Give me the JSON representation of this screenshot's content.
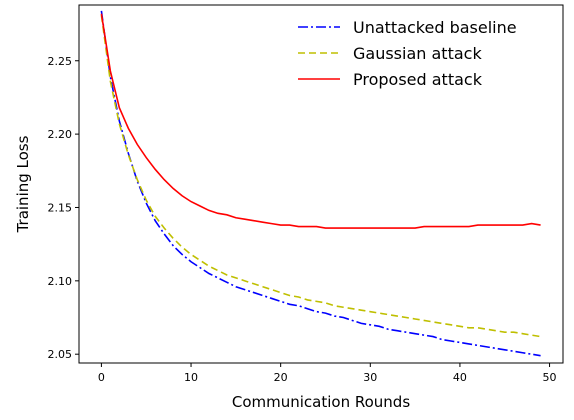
{
  "chart_data": {
    "type": "line",
    "xlabel": "Communication Rounds",
    "ylabel": "Training Loss",
    "xlim": [
      -2.5,
      51.5
    ],
    "ylim": [
      2.044,
      2.288
    ],
    "xticks": [
      0,
      10,
      20,
      30,
      40,
      50
    ],
    "yticks": [
      2.05,
      2.1,
      2.15,
      2.2,
      2.25
    ],
    "xtick_labels": [
      "0",
      "10",
      "20",
      "30",
      "40",
      "50"
    ],
    "ytick_labels": [
      "2.05",
      "2.10",
      "2.15",
      "2.20",
      "2.25"
    ],
    "grid": false,
    "legend_position": "top-right",
    "x": [
      0,
      1,
      2,
      3,
      4,
      5,
      6,
      7,
      8,
      9,
      10,
      11,
      12,
      13,
      14,
      15,
      16,
      17,
      18,
      19,
      20,
      21,
      22,
      23,
      24,
      25,
      26,
      27,
      28,
      29,
      30,
      31,
      32,
      33,
      34,
      35,
      36,
      37,
      38,
      39,
      40,
      41,
      42,
      43,
      44,
      45,
      46,
      47,
      48,
      49
    ],
    "series": [
      {
        "name": "Unattacked baseline",
        "color": "#0000ff",
        "dash": "dashdot",
        "values": [
          2.284,
          2.239,
          2.209,
          2.187,
          2.168,
          2.153,
          2.141,
          2.132,
          2.124,
          2.118,
          2.113,
          2.109,
          2.105,
          2.102,
          2.099,
          2.096,
          2.094,
          2.092,
          2.09,
          2.088,
          2.086,
          2.084,
          2.083,
          2.081,
          2.079,
          2.078,
          2.076,
          2.075,
          2.073,
          2.071,
          2.07,
          2.069,
          2.067,
          2.066,
          2.065,
          2.064,
          2.063,
          2.062,
          2.06,
          2.059,
          2.058,
          2.057,
          2.056,
          2.055,
          2.054,
          2.053,
          2.052,
          2.051,
          2.05,
          2.049
        ]
      },
      {
        "name": "Gaussian attack",
        "color": "#bfbf00",
        "dash": "dashed",
        "values": [
          2.281,
          2.236,
          2.207,
          2.186,
          2.169,
          2.155,
          2.144,
          2.136,
          2.129,
          2.123,
          2.118,
          2.114,
          2.11,
          2.107,
          2.104,
          2.102,
          2.1,
          2.098,
          2.096,
          2.094,
          2.092,
          2.09,
          2.089,
          2.087,
          2.086,
          2.085,
          2.083,
          2.082,
          2.081,
          2.08,
          2.079,
          2.078,
          2.077,
          2.076,
          2.075,
          2.074,
          2.073,
          2.072,
          2.071,
          2.07,
          2.069,
          2.068,
          2.068,
          2.067,
          2.066,
          2.065,
          2.065,
          2.064,
          2.063,
          2.062
        ]
      },
      {
        "name": "Proposed attack",
        "color": "#ff0000",
        "dash": "solid",
        "values": [
          2.282,
          2.243,
          2.218,
          2.204,
          2.193,
          2.184,
          2.176,
          2.169,
          2.163,
          2.158,
          2.154,
          2.151,
          2.148,
          2.146,
          2.145,
          2.143,
          2.142,
          2.141,
          2.14,
          2.139,
          2.138,
          2.138,
          2.137,
          2.137,
          2.137,
          2.136,
          2.136,
          2.136,
          2.136,
          2.136,
          2.136,
          2.136,
          2.136,
          2.136,
          2.136,
          2.136,
          2.137,
          2.137,
          2.137,
          2.137,
          2.137,
          2.137,
          2.138,
          2.138,
          2.138,
          2.138,
          2.138,
          2.138,
          2.139,
          2.138
        ]
      }
    ]
  }
}
